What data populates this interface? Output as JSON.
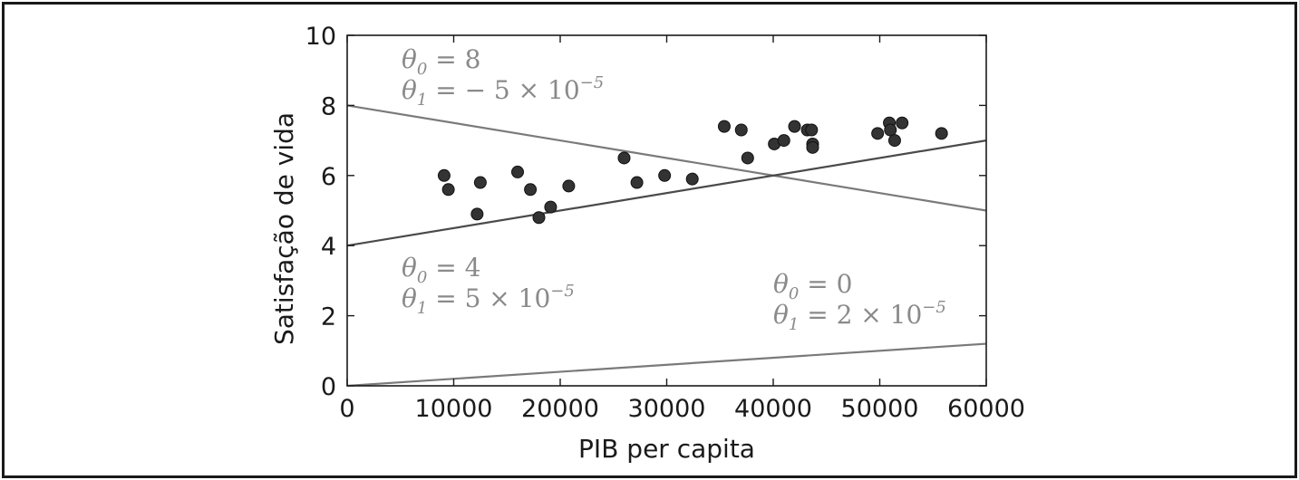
{
  "chart_data": {
    "type": "scatter",
    "xlabel": "PIB per capita",
    "ylabel": "Satisfação de vida",
    "xlim": [
      0,
      60000
    ],
    "ylim": [
      0,
      10
    ],
    "xticks": [
      0,
      10000,
      20000,
      30000,
      40000,
      50000,
      60000
    ],
    "xtick_labels": [
      "0",
      "10000",
      "20000",
      "30000",
      "40000",
      "50000",
      "60000"
    ],
    "yticks": [
      0,
      2,
      4,
      6,
      8,
      10
    ],
    "ytick_labels": [
      "0",
      "2",
      "4",
      "6",
      "8",
      "10"
    ],
    "grid": false,
    "points": {
      "x": [
        9100,
        9500,
        12200,
        12500,
        16000,
        17200,
        18000,
        19100,
        20800,
        26000,
        27200,
        29800,
        32400,
        35400,
        37000,
        37600,
        40100,
        41000,
        42000,
        43200,
        43600,
        43700,
        43700,
        49800,
        50900,
        51000,
        51400,
        52100,
        55800
      ],
      "y": [
        6.0,
        5.6,
        4.9,
        5.8,
        6.1,
        5.6,
        4.8,
        5.1,
        5.7,
        6.5,
        5.8,
        6.0,
        5.9,
        7.4,
        7.3,
        6.5,
        6.9,
        7.0,
        7.4,
        7.3,
        7.3,
        6.9,
        6.8,
        7.2,
        7.5,
        7.3,
        7.0,
        7.5,
        7.2
      ]
    },
    "lines": [
      {
        "theta0": 8,
        "theta1": -5e-05,
        "color": "#7a7a7a",
        "label": [
          {
            "sym": "θ",
            "sub": "0",
            "eq": " = 8",
            "sup": ""
          },
          {
            "sym": "θ",
            "sub": "1",
            "eq": " = − 5 × 10",
            "sup": "−5"
          }
        ]
      },
      {
        "theta0": 4,
        "theta1": 5e-05,
        "color": "#4a4a4a",
        "label": [
          {
            "sym": "θ",
            "sub": "0",
            "eq": " = 4",
            "sup": ""
          },
          {
            "sym": "θ",
            "sub": "1",
            "eq": " = 5 × 10",
            "sup": "−5"
          }
        ]
      },
      {
        "theta0": 0,
        "theta1": 2e-05,
        "color": "#7a7a7a",
        "label": [
          {
            "sym": "θ",
            "sub": "0",
            "eq": " = 0",
            "sup": ""
          },
          {
            "sym": "θ",
            "sub": "1",
            "eq": " = 2 × 10",
            "sup": "−5"
          }
        ]
      }
    ],
    "marker_color": "#333333",
    "annotation_color": "#8a8a8a"
  }
}
